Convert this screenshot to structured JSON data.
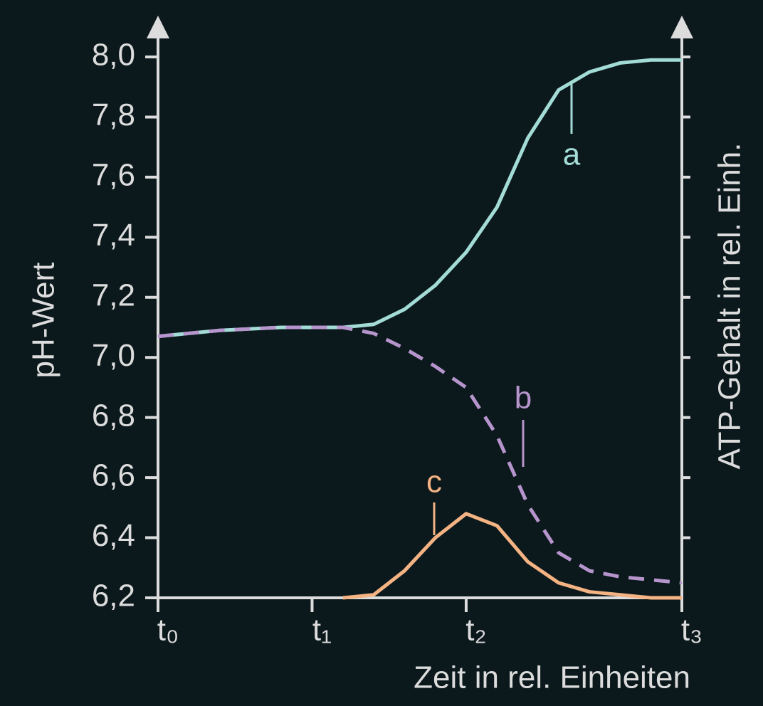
{
  "chart_data": {
    "type": "line",
    "y_label": "pH-Wert",
    "y2_label": "ATP-Gehalt in rel. Einh.",
    "x_label": "Zeit in rel. Einheiten",
    "x": [
      0,
      0.4,
      0.8,
      1.0,
      1.2,
      1.4,
      1.6,
      1.8,
      2.0,
      2.2,
      2.4,
      2.6,
      2.8,
      3.0,
      3.2,
      3.4
    ],
    "xlim": [
      0,
      3.4
    ],
    "xticks": [
      {
        "value": 0,
        "label": "t₀"
      },
      {
        "value": 1,
        "label": "t₁"
      },
      {
        "value": 2,
        "label": "t₂"
      },
      {
        "value": 3.4,
        "label": "t₃"
      }
    ],
    "ylim": [
      6.2,
      8.0
    ],
    "yticks": [
      {
        "value": 6.2,
        "label": "6,2"
      },
      {
        "value": 6.4,
        "label": "6,4"
      },
      {
        "value": 6.6,
        "label": "6,6"
      },
      {
        "value": 6.8,
        "label": "6,8"
      },
      {
        "value": 7.0,
        "label": "7,0"
      },
      {
        "value": 7.2,
        "label": "7,2"
      },
      {
        "value": 7.4,
        "label": "7,4"
      },
      {
        "value": 7.6,
        "label": "7,6"
      },
      {
        "value": 7.8,
        "label": "7,8"
      },
      {
        "value": 8.0,
        "label": "8,0"
      }
    ],
    "series": [
      {
        "name": "a",
        "color": "#a3dcd6",
        "dashed": false,
        "values": [
          7.07,
          7.09,
          7.1,
          7.1,
          7.1,
          7.11,
          7.16,
          7.24,
          7.35,
          7.5,
          7.73,
          7.89,
          7.95,
          7.98,
          7.99,
          7.99
        ]
      },
      {
        "name": "b",
        "color": "#b695cc",
        "dashed": true,
        "values": [
          7.07,
          7.09,
          7.1,
          7.1,
          7.1,
          7.08,
          7.03,
          6.97,
          6.9,
          6.74,
          6.51,
          6.35,
          6.29,
          6.27,
          6.26,
          6.25
        ]
      },
      {
        "name": "c",
        "color": "#f4b383",
        "dashed": false,
        "values": [
          null,
          null,
          null,
          null,
          6.2,
          6.21,
          6.29,
          6.4,
          6.48,
          6.44,
          6.32,
          6.25,
          6.22,
          6.21,
          6.2,
          6.2
        ]
      }
    ]
  }
}
